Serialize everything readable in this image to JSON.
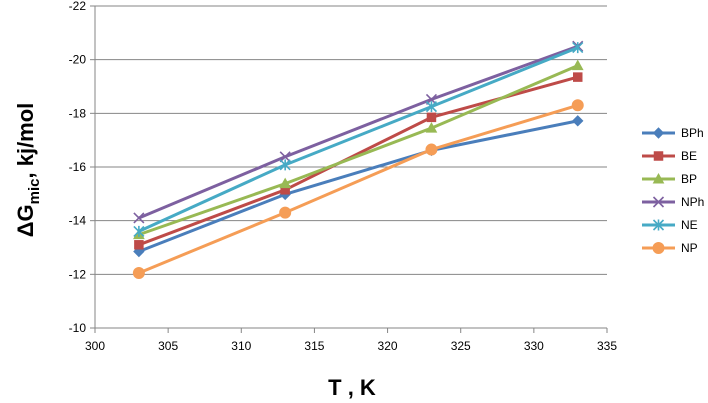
{
  "chart_data": {
    "type": "line",
    "xlabel": "T , K",
    "ylabel_main": "ΔG",
    "ylabel_sub": "mic",
    "ylabel_tail": ",  kj/mol",
    "xlim": [
      300,
      335
    ],
    "ylim": [
      -10,
      -22
    ],
    "xticks": [
      "300",
      "305",
      "310",
      "315",
      "320",
      "325",
      "330",
      "335"
    ],
    "yticks": [
      "-10",
      "-12",
      "-14",
      "-16",
      "-18",
      "-20",
      "-22"
    ],
    "grid": "horizontal",
    "legend_position": "right",
    "x": [
      303,
      313,
      323,
      333
    ],
    "series": [
      {
        "name": "BPh",
        "values": [
          -12.85,
          -14.98,
          -16.62,
          -17.72
        ],
        "color": "#4a7ebb",
        "marker": "diamond"
      },
      {
        "name": "BE",
        "values": [
          -13.1,
          -15.15,
          -17.85,
          -19.35
        ],
        "color": "#be4b48",
        "marker": "square"
      },
      {
        "name": "BP",
        "values": [
          -13.48,
          -15.38,
          -17.45,
          -19.78
        ],
        "color": "#98b954",
        "marker": "triangle"
      },
      {
        "name": "NPh",
        "values": [
          -14.1,
          -16.38,
          -18.52,
          -20.5
        ],
        "color": "#7d60a0",
        "marker": "x"
      },
      {
        "name": "NE",
        "values": [
          -13.6,
          -16.08,
          -18.25,
          -20.45
        ],
        "color": "#46aac5",
        "marker": "star"
      },
      {
        "name": "NP",
        "values": [
          -12.05,
          -14.3,
          -16.65,
          -18.3
        ],
        "color": "#f59d56",
        "marker": "circle"
      }
    ]
  }
}
